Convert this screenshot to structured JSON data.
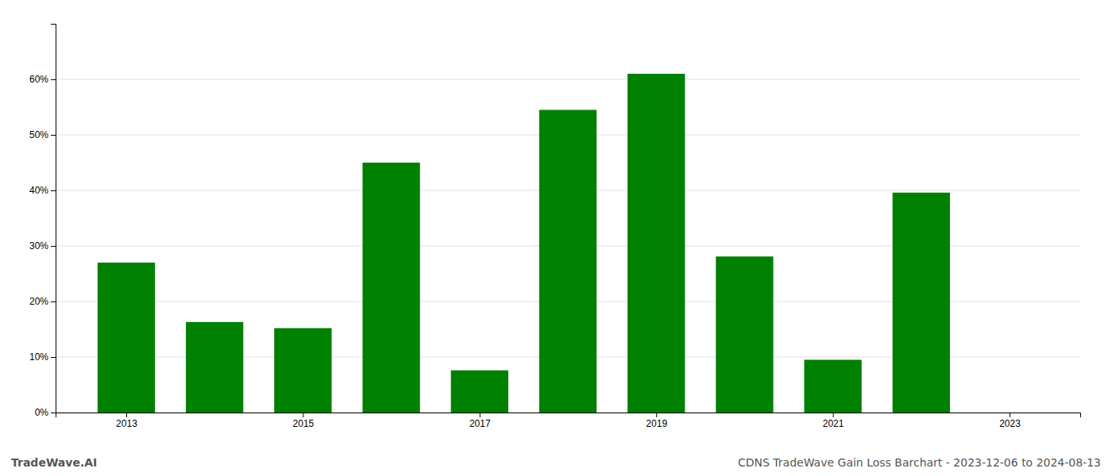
{
  "chart_data": {
    "type": "bar",
    "x": [
      2013,
      2014,
      2015,
      2016,
      2017,
      2018,
      2019,
      2020,
      2021,
      2022,
      2023
    ],
    "values": [
      0.27,
      0.163,
      0.152,
      0.45,
      0.076,
      0.545,
      0.61,
      0.281,
      0.095,
      0.396,
      null
    ],
    "color": "#008000",
    "xlim": [
      2012.2,
      2023.8
    ],
    "xticks": [
      2013,
      2015,
      2017,
      2019,
      2021,
      2023
    ],
    "ylim": [
      0,
      0.7
    ],
    "yticks": [
      {
        "value": 0.0,
        "label": "0%"
      },
      {
        "value": 0.1,
        "label": "10%"
      },
      {
        "value": 0.2,
        "label": "20%"
      },
      {
        "value": 0.3,
        "label": "30%"
      },
      {
        "value": 0.4,
        "label": "40%"
      },
      {
        "value": 0.5,
        "label": "50%"
      },
      {
        "value": 0.6,
        "label": "60%"
      }
    ],
    "grid": true,
    "annotations": [
      "TradeWave.AI",
      "CDNS TradeWave Gain Loss Barchart - 2023-12-06 to 2024-08-13"
    ]
  }
}
